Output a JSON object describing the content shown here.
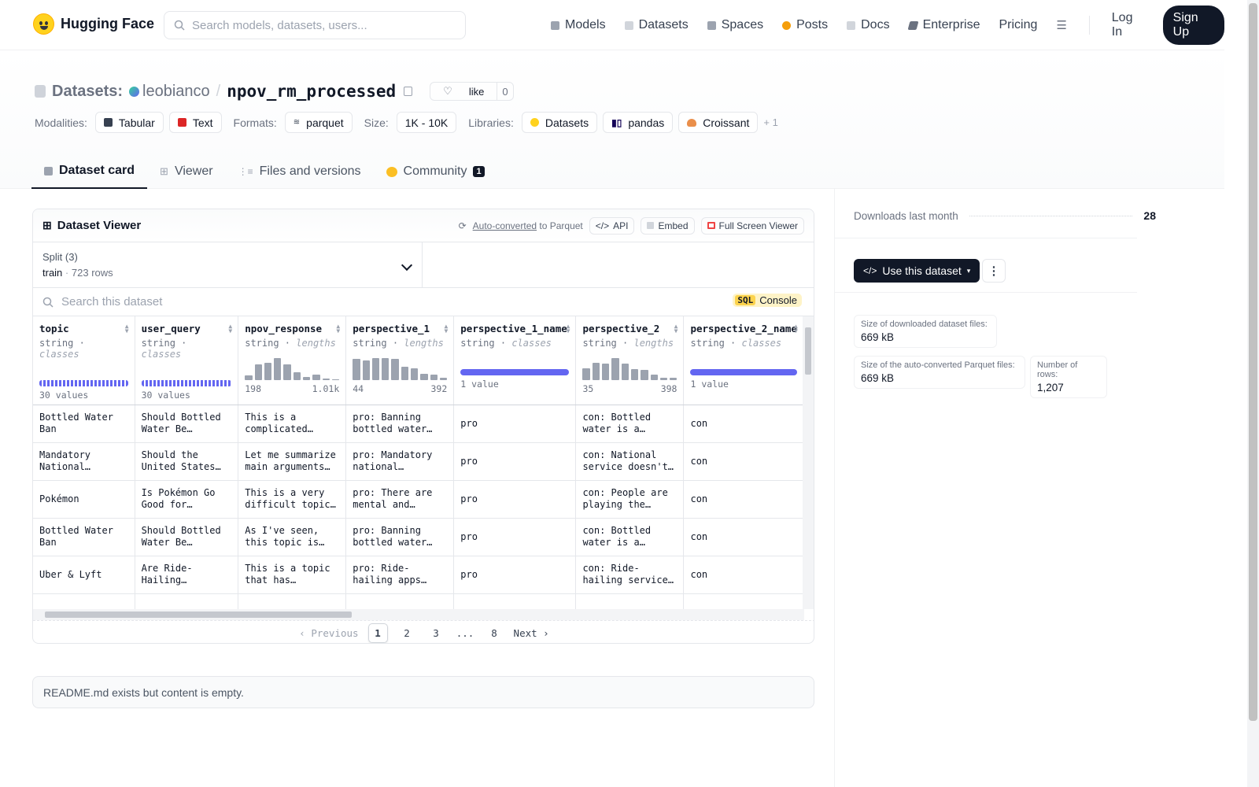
{
  "brand": {
    "name": "Hugging Face"
  },
  "search": {
    "placeholder": "Search models, datasets, users..."
  },
  "nav": {
    "items": [
      {
        "label": "Models",
        "icon": "models-icon",
        "color": "#9ca3af"
      },
      {
        "label": "Datasets",
        "icon": "datasets-icon",
        "color": "#d1d5db"
      },
      {
        "label": "Spaces",
        "icon": "spaces-icon",
        "color": "#9ca3af"
      },
      {
        "label": "Posts",
        "icon": "posts-icon",
        "color": "#f59e0b"
      },
      {
        "label": "Docs",
        "icon": "docs-icon",
        "color": "#d1d5db"
      },
      {
        "label": "Enterprise",
        "icon": "enterprise-icon",
        "color": "#6b7280"
      }
    ],
    "pricing": "Pricing",
    "login": "Log In",
    "signup": "Sign Up"
  },
  "header": {
    "prefix": "Datasets:",
    "owner": "leobianco",
    "sep": "/",
    "name": "npov_rm_processed",
    "like_label": "like",
    "like_count": "0",
    "modalities_label": "Modalities:",
    "modalities": [
      "Tabular",
      "Text"
    ],
    "formats_label": "Formats:",
    "formats": [
      "parquet"
    ],
    "size_label": "Size:",
    "size": "1K - 10K",
    "libraries_label": "Libraries:",
    "libraries": [
      "Datasets",
      "pandas",
      "Croissant"
    ],
    "libraries_more": "+ 1"
  },
  "tabs": [
    {
      "label": "Dataset card",
      "active": true
    },
    {
      "label": "Viewer"
    },
    {
      "label": "Files and versions"
    },
    {
      "label": "Community",
      "badge": "1"
    }
  ],
  "viewer": {
    "title": "Dataset Viewer",
    "auto_converted": "Auto-converted",
    "to_parquet": "to Parquet",
    "api": "API",
    "embed": "Embed",
    "full_screen": "Full Screen Viewer",
    "split_label": "Split (3)",
    "split_name": "train",
    "split_rows": "723 rows",
    "search_placeholder": "Search this dataset",
    "sql_badge": "SQL",
    "sql_console": "Console",
    "columns": [
      {
        "name": "topic",
        "type": "string",
        "kind": "classes",
        "stat": "30 values",
        "viz": "classes"
      },
      {
        "name": "user_query",
        "type": "string",
        "kind": "classes",
        "stat": "30 values",
        "viz": "classes"
      },
      {
        "name": "npov_response",
        "type": "string",
        "kind": "lengths",
        "min": "198",
        "max": "1.01k",
        "hist": [
          0.2,
          0.7,
          0.8,
          1.0,
          0.7,
          0.35,
          0.15,
          0.25,
          0.08,
          0.05
        ]
      },
      {
        "name": "perspective_1",
        "type": "string",
        "kind": "lengths",
        "min": "44",
        "max": "392",
        "hist": [
          0.95,
          0.9,
          1.0,
          1.0,
          0.95,
          0.6,
          0.55,
          0.3,
          0.25,
          0.1
        ]
      },
      {
        "name": "perspective_1_name",
        "type": "string",
        "kind": "classes",
        "stat": "1 value",
        "viz": "one"
      },
      {
        "name": "perspective_2",
        "type": "string",
        "kind": "lengths",
        "min": "35",
        "max": "398",
        "hist": [
          0.55,
          0.8,
          0.75,
          1.0,
          0.75,
          0.5,
          0.45,
          0.25,
          0.1,
          0.1
        ]
      },
      {
        "name": "perspective_2_name",
        "type": "string",
        "kind": "classes",
        "stat": "1 value",
        "viz": "one"
      }
    ],
    "rows": [
      [
        "Bottled Water Ban",
        "Should Bottled Water Be Banned?",
        "This is a complicated issue…",
        "pro: Banning bottled water…",
        "pro",
        "con: Bottled water is a practical…",
        "con"
      ],
      [
        "Mandatory National Service",
        "Should the United States Have…",
        "Let me summarize main arguments…",
        "pro: Mandatory national service…",
        "pro",
        "con: National service doesn't…",
        "con"
      ],
      [
        "Pokémon",
        "Is Pokémon Go Good for Society?",
        "This is a very difficult topic…",
        "pro: There are mental and…",
        "pro",
        "con: People are playing the game…",
        "con"
      ],
      [
        "Bottled Water Ban",
        "Should Bottled Water Be Banned?",
        "As I've seen, this topic is very…",
        "pro: Banning bottled water…",
        "pro",
        "con: Bottled water is a practical…",
        "con"
      ],
      [
        "Uber & Lyft",
        "Are Ride-Hailing Companies a…",
        "This is a topic that has recently…",
        "pro: Ride-hailing apps are…",
        "pro",
        "con: Ride-hailing services have a…",
        "con"
      ],
      [
        "",
        "",
        "",
        "",
        "",
        "",
        ""
      ]
    ],
    "pager": {
      "prev": "Previous",
      "pages": [
        "1",
        "2",
        "3",
        "...",
        "8"
      ],
      "next": "Next"
    }
  },
  "readme": "README.md exists but content is empty.",
  "sidebar": {
    "downloads_label": "Downloads last month",
    "downloads_value": "28",
    "use_dataset": "Use this dataset",
    "size_downloaded_label": "Size of downloaded dataset files:",
    "size_downloaded_value": "669 kB",
    "size_parquet_label": "Size of the auto-converted Parquet files:",
    "size_parquet_value": "669 kB",
    "num_rows_label": "Number of rows:",
    "num_rows_value": "1,207"
  }
}
